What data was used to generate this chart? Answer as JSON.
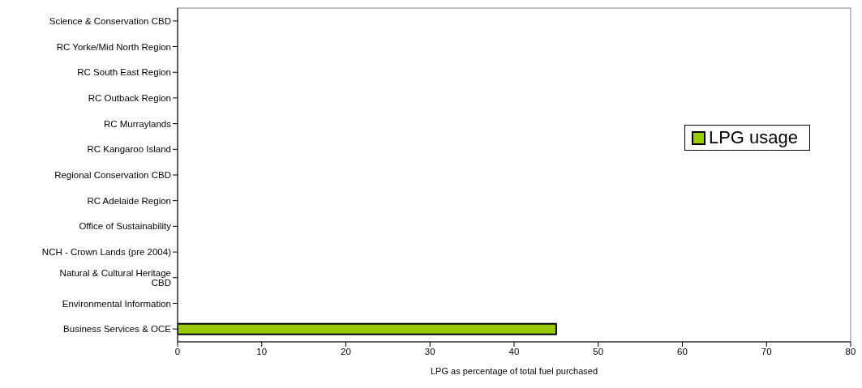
{
  "chart_data": {
    "type": "bar",
    "orientation": "horizontal",
    "xlabel": "LPG  as percentage of total fuel purchased",
    "categories": [
      "Science & Conservation CBD",
      "RC Yorke/Mid North Region",
      "RC South East Region",
      "RC Outback Region",
      "RC Murraylands",
      "RC Kangaroo Island",
      "Regional Conservation CBD",
      "RC Adelaide Region",
      "Office of Sustainability",
      "NCH - Crown Lands (pre 2004)",
      "Natural & Cultural Heritage CBD",
      "Environmental Information",
      "Business Services & OCE"
    ],
    "series": [
      {
        "name": "LPG usage",
        "color": "#99cc00",
        "values": [
          0,
          0,
          0,
          0,
          0,
          0,
          0,
          0,
          0,
          0,
          0,
          0,
          45
        ]
      }
    ],
    "xlim": [
      0,
      80
    ],
    "xticks": [
      0,
      10,
      20,
      30,
      40,
      50,
      60,
      70,
      80
    ],
    "legend": "top right"
  }
}
